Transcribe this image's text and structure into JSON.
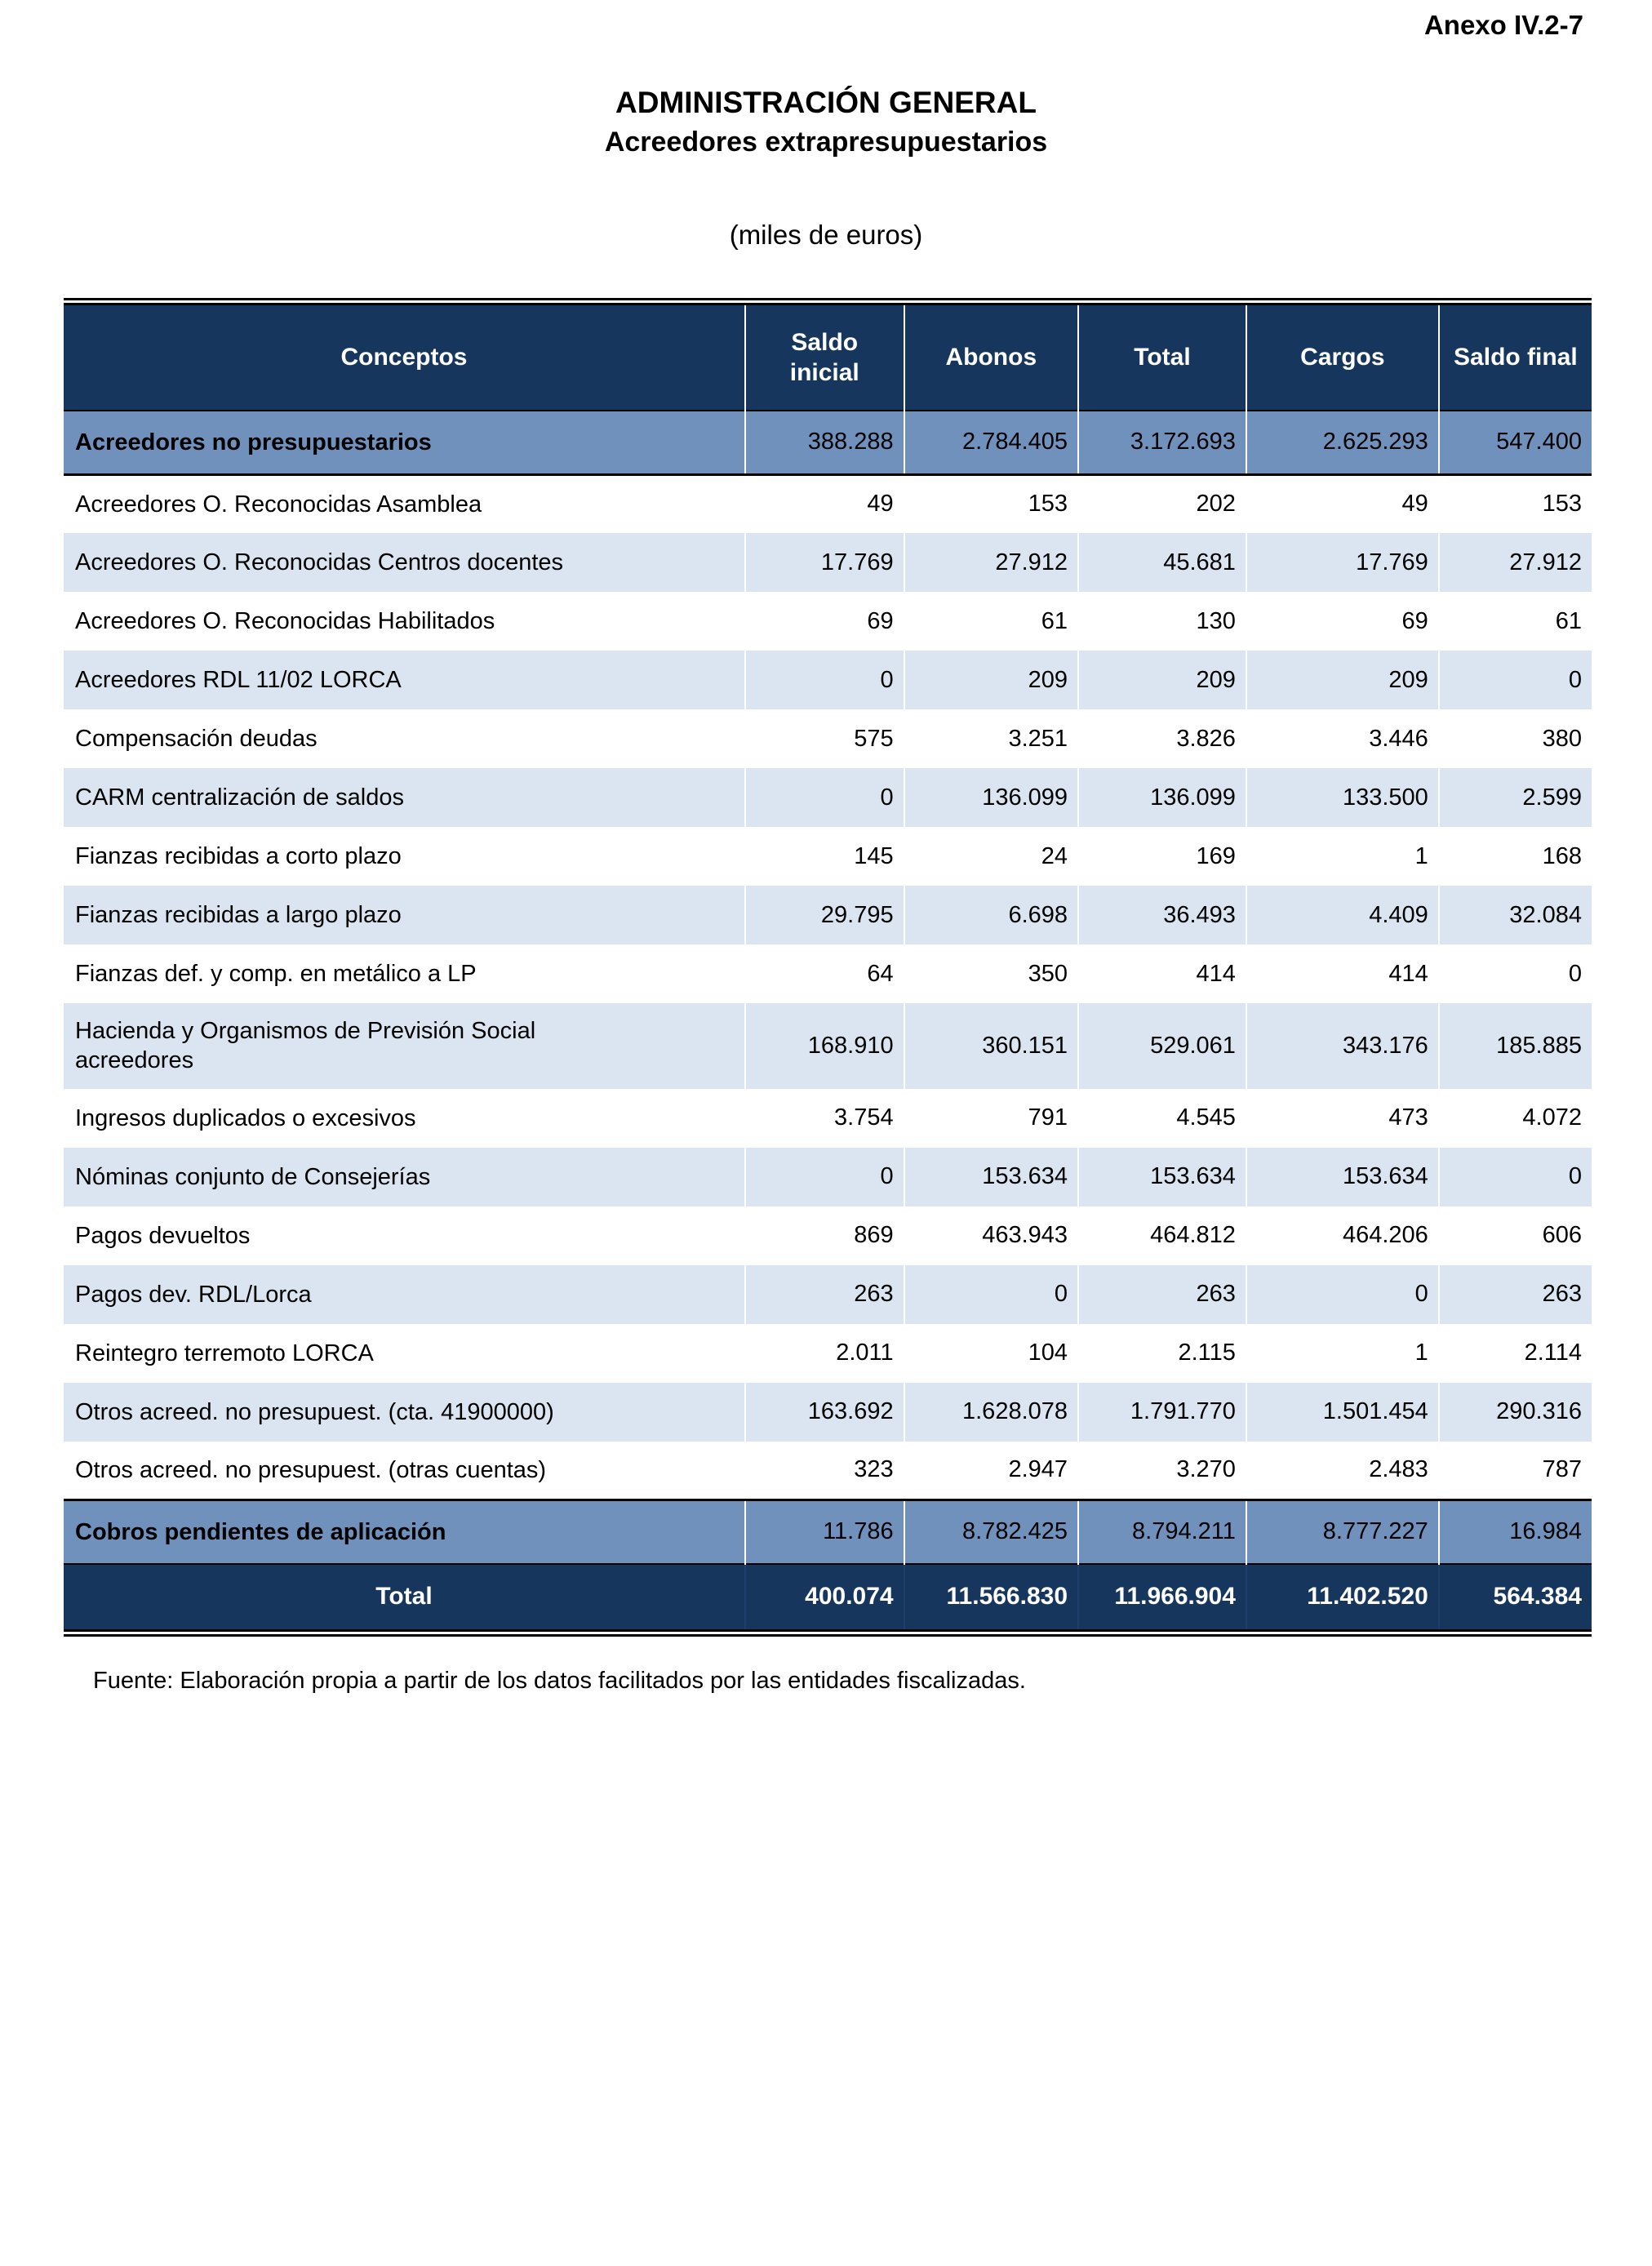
{
  "page": {
    "annex_label": "Anexo IV.2-7",
    "title": "ADMINISTRACIÓN GENERAL",
    "subtitle": "Acreedores extrapresupuestarios",
    "units": "(miles de euros)",
    "source_note": "Fuente: Elaboración propia a partir de los datos facilitados por las entidades fiscalizadas."
  },
  "colors": {
    "header_navy": "#17365D",
    "subtotal_blue": "#7191BD",
    "zebra_light_blue": "#DBE5F1",
    "header_text": "#FFFFFF",
    "body_text": "#000000"
  },
  "table": {
    "columns": [
      "Conceptos",
      "Saldo inicial",
      "Abonos",
      "Total",
      "Cargos",
      "Saldo final"
    ],
    "rows": [
      {
        "type": "subtotal",
        "label": "Acreedores no presupuestarios",
        "values": [
          "388.288",
          "2.784.405",
          "3.172.693",
          "2.625.293",
          "547.400"
        ]
      },
      {
        "type": "data",
        "label": "Acreedores O. Reconocidas Asamblea",
        "values": [
          "49",
          "153",
          "202",
          "49",
          "153"
        ]
      },
      {
        "type": "data",
        "label": "Acreedores O. Reconocidas Centros docentes",
        "values": [
          "17.769",
          "27.912",
          "45.681",
          "17.769",
          "27.912"
        ]
      },
      {
        "type": "data",
        "label": "Acreedores O. Reconocidas Habilitados",
        "values": [
          "69",
          "61",
          "130",
          "69",
          "61"
        ]
      },
      {
        "type": "data",
        "label": "Acreedores RDL 11/02 LORCA",
        "values": [
          "0",
          "209",
          "209",
          "209",
          "0"
        ]
      },
      {
        "type": "data",
        "label": "Compensación deudas",
        "values": [
          "575",
          "3.251",
          "3.826",
          "3.446",
          "380"
        ]
      },
      {
        "type": "data",
        "label": "CARM centralización de saldos",
        "values": [
          "0",
          "136.099",
          "136.099",
          "133.500",
          "2.599"
        ]
      },
      {
        "type": "data",
        "label": "Fianzas recibidas a corto plazo",
        "values": [
          "145",
          "24",
          "169",
          "1",
          "168"
        ]
      },
      {
        "type": "data",
        "label": "Fianzas recibidas a largo plazo",
        "values": [
          "29.795",
          "6.698",
          "36.493",
          "4.409",
          "32.084"
        ]
      },
      {
        "type": "data",
        "label": "Fianzas def. y comp. en metálico a LP",
        "values": [
          "64",
          "350",
          "414",
          "414",
          "0"
        ]
      },
      {
        "type": "data",
        "label": "Hacienda y Organismos de Previsión Social acreedores",
        "values": [
          "168.910",
          "360.151",
          "529.061",
          "343.176",
          "185.885"
        ]
      },
      {
        "type": "data",
        "label": "Ingresos duplicados o excesivos",
        "values": [
          "3.754",
          "791",
          "4.545",
          "473",
          "4.072"
        ]
      },
      {
        "type": "data",
        "label": "Nóminas conjunto de Consejerías",
        "values": [
          "0",
          "153.634",
          "153.634",
          "153.634",
          "0"
        ]
      },
      {
        "type": "data",
        "label": "Pagos devueltos",
        "values": [
          "869",
          "463.943",
          "464.812",
          "464.206",
          "606"
        ]
      },
      {
        "type": "data",
        "label": "Pagos dev. RDL/Lorca",
        "values": [
          "263",
          "0",
          "263",
          "0",
          "263"
        ]
      },
      {
        "type": "data",
        "label": "Reintegro terremoto LORCA",
        "values": [
          "2.011",
          "104",
          "2.115",
          "1",
          "2.114"
        ]
      },
      {
        "type": "data",
        "label": "Otros acreed. no presupuest. (cta. 41900000)",
        "values": [
          "163.692",
          "1.628.078",
          "1.791.770",
          "1.501.454",
          "290.316"
        ]
      },
      {
        "type": "data",
        "label": "Otros acreed. no presupuest. (otras cuentas)",
        "values": [
          "323",
          "2.947",
          "3.270",
          "2.483",
          "787"
        ]
      },
      {
        "type": "section",
        "label": "Cobros pendientes de aplicación",
        "values": [
          "11.786",
          "8.782.425",
          "8.794.211",
          "8.777.227",
          "16.984"
        ]
      },
      {
        "type": "total",
        "label": "Total",
        "values": [
          "400.074",
          "11.566.830",
          "11.966.904",
          "11.402.520",
          "564.384"
        ]
      }
    ]
  }
}
